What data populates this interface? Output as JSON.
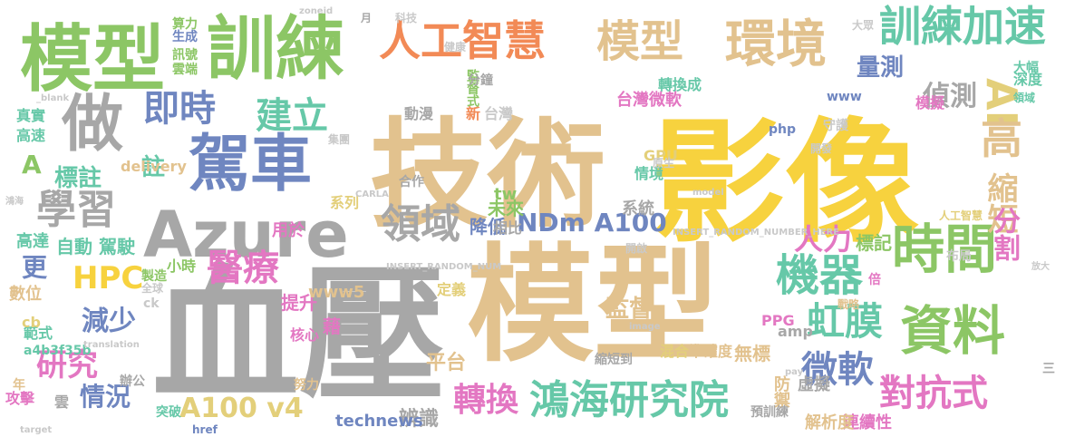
{
  "palette": {
    "tan": "#e2c28e",
    "yellow": "#f7d23e",
    "green": "#8cc665",
    "blue": "#6f86c0",
    "gray": "#a7a7a7",
    "pink": "#e377c2",
    "orange": "#f28a56",
    "teal": "#66c8a8",
    "lightyellow": "#e3cf7a",
    "lightgray": "#c9c9c9"
  },
  "words": [
    {
      "text": "技術",
      "color": "tan"
    },
    {
      "text": "影像",
      "color": "yellow"
    },
    {
      "text": "血壓",
      "color": "gray"
    },
    {
      "text": "模型",
      "color": "tan"
    },
    {
      "text": "模型",
      "color": "green"
    },
    {
      "text": "訓練",
      "color": "green"
    },
    {
      "text": "做",
      "color": "gray"
    },
    {
      "text": "駕車",
      "color": "blue"
    },
    {
      "text": "Azure",
      "color": "gray"
    },
    {
      "text": "人工智慧",
      "color": "orange"
    },
    {
      "text": "模型",
      "color": "tan"
    },
    {
      "text": "環境",
      "color": "tan"
    },
    {
      "text": "訓練加速",
      "color": "teal"
    },
    {
      "text": "時間",
      "color": "green"
    },
    {
      "text": "資料",
      "color": "green"
    },
    {
      "text": "學習",
      "color": "gray"
    },
    {
      "text": "即時",
      "color": "blue"
    },
    {
      "text": "建立",
      "color": "teal"
    },
    {
      "text": "領域",
      "color": "gray"
    },
    {
      "text": "機器",
      "color": "teal"
    },
    {
      "text": "醫療",
      "color": "pink"
    },
    {
      "text": "鴻海研究院",
      "color": "teal"
    },
    {
      "text": "轉換",
      "color": "pink"
    },
    {
      "text": "對抗式",
      "color": "pink"
    },
    {
      "text": "微軟",
      "color": "blue"
    },
    {
      "text": "虹膜",
      "color": "teal"
    },
    {
      "text": "HPC",
      "color": "yellow"
    },
    {
      "text": "NDm A100",
      "color": "blue"
    },
    {
      "text": "A100 v4",
      "color": "lightyellow"
    },
    {
      "text": "研究",
      "color": "pink"
    },
    {
      "text": "減少",
      "color": "blue"
    },
    {
      "text": "情況",
      "color": "blue"
    },
    {
      "text": "標註",
      "color": "teal"
    },
    {
      "text": "註",
      "color": "teal"
    },
    {
      "text": "A",
      "color": "green"
    },
    {
      "text": "更",
      "color": "blue"
    },
    {
      "text": "偵測",
      "color": "gray"
    },
    {
      "text": "量測",
      "color": "blue"
    },
    {
      "text": "AI",
      "color": "lightyellow"
    },
    {
      "text": "高",
      "color": "tan"
    },
    {
      "text": "縮短",
      "color": "tan"
    },
    {
      "text": "分割",
      "color": "pink"
    },
    {
      "text": "人力",
      "color": "pink"
    },
    {
      "text": "標記",
      "color": "green"
    },
    {
      "text": "自動 駕駛",
      "color": "teal"
    },
    {
      "text": "小時",
      "color": "green"
    },
    {
      "text": "提升",
      "color": "pink"
    },
    {
      "text": "監督",
      "color": "tan"
    },
    {
      "text": "無標",
      "color": "tan"
    },
    {
      "text": "準確度",
      "color": "tan"
    },
    {
      "text": "虛擬",
      "color": "gray"
    },
    {
      "text": "防禦",
      "color": "tan"
    },
    {
      "text": "辨識",
      "color": "gray"
    },
    {
      "text": "technews",
      "color": "blue"
    },
    {
      "text": "平台",
      "color": "tan"
    },
    {
      "text": "降低",
      "color": "blue"
    },
    {
      "text": "未來",
      "color": "green"
    },
    {
      "text": "tw",
      "color": "green"
    },
    {
      "text": "www5",
      "color": "tan"
    },
    {
      "text": "監督式",
      "color": "green"
    },
    {
      "text": "台灣微軟",
      "color": "pink"
    },
    {
      "text": "轉換成",
      "color": "teal"
    },
    {
      "text": "情境",
      "color": "teal"
    },
    {
      "text": "GPU",
      "color": "lightyellow"
    },
    {
      "text": "系統",
      "color": "gray"
    },
    {
      "text": "相比",
      "color": "gray"
    },
    {
      "text": "合作",
      "color": "gray"
    },
    {
      "text": "系列",
      "color": "lightyellow"
    },
    {
      "text": "用於",
      "color": "pink"
    },
    {
      "text": "delivery",
      "color": "tan"
    },
    {
      "text": "數位",
      "color": "tan"
    },
    {
      "text": "範式",
      "color": "teal"
    },
    {
      "text": "攻擊",
      "color": "pink"
    },
    {
      "text": "高速",
      "color": "teal"
    },
    {
      "text": "高達",
      "color": "teal"
    },
    {
      "text": "真實",
      "color": "teal"
    },
    {
      "text": "年",
      "color": "tan"
    },
    {
      "text": "雲",
      "color": "gray"
    },
    {
      "text": "辦公",
      "color": "gray"
    },
    {
      "text": "突破",
      "color": "teal"
    },
    {
      "text": "href",
      "color": "blue"
    },
    {
      "text": "核心",
      "color": "pink"
    },
    {
      "text": "藉",
      "color": "pink"
    },
    {
      "text": "努力",
      "color": "tan"
    },
    {
      "text": "cb",
      "color": "lightyellow"
    },
    {
      "text": "a4b3f35b",
      "color": "teal"
    },
    {
      "text": "ck",
      "color": "lightgray"
    },
    {
      "text": "php",
      "color": "blue"
    },
    {
      "text": "www",
      "color": "blue"
    },
    {
      "text": "amp",
      "color": "gray"
    },
    {
      "text": "PPG",
      "color": "pink"
    },
    {
      "text": "連續性",
      "color": "pink"
    },
    {
      "text": "解析度",
      "color": "tan"
    },
    {
      "text": "預訓練",
      "color": "gray"
    },
    {
      "text": "縮短到",
      "color": "gray"
    },
    {
      "text": "混合",
      "color": "lightyellow"
    },
    {
      "text": "動漫",
      "color": "gray"
    },
    {
      "text": "新",
      "color": "orange"
    },
    {
      "text": "台灣",
      "color": "lightgray"
    },
    {
      "text": "分鐘",
      "color": "gray"
    },
    {
      "text": "定義",
      "color": "lightyellow"
    },
    {
      "text": "模擬",
      "color": "pink"
    },
    {
      "text": "倍",
      "color": "pink"
    },
    {
      "text": "深度",
      "color": "teal"
    },
    {
      "text": "大幅",
      "color": "teal"
    },
    {
      "text": "領域",
      "color": "teal"
    },
    {
      "text": "守護",
      "color": "lightgray"
    },
    {
      "text": "布局",
      "color": "lightgray"
    },
    {
      "text": "人工智慧",
      "color": "lightyellow"
    },
    {
      "text": "戰略",
      "color": "tan"
    },
    {
      "text": "INSERT_RANDOM_NUMBER_HERE",
      "color": "lightgray"
    },
    {
      "text": "INSERT_RANDOM_NUM",
      "color": "lightgray"
    },
    {
      "text": "生成",
      "color": "blue"
    },
    {
      "text": "算力",
      "color": "green"
    },
    {
      "text": "訊號",
      "color": "green"
    },
    {
      "text": "雲端",
      "color": "green"
    },
    {
      "text": "製造",
      "color": "green"
    },
    {
      "text": "全球",
      "color": "lightgray"
    },
    {
      "text": "集團",
      "color": "lightgray"
    },
    {
      "text": "原生",
      "color": "lightgray"
    },
    {
      "text": "開啟",
      "color": "lightgray"
    },
    {
      "text": "健康",
      "color": "lightgray"
    },
    {
      "text": "科技",
      "color": "lightgray"
    },
    {
      "text": "月",
      "color": "gray"
    },
    {
      "text": "大眾",
      "color": "lightgray"
    },
    {
      "text": "image",
      "color": "lightgray"
    },
    {
      "text": "translation",
      "color": "lightgray"
    },
    {
      "text": "target",
      "color": "lightgray"
    },
    {
      "text": "_blank",
      "color": "lightgray"
    },
    {
      "text": "zoneid",
      "color": "lightgray"
    },
    {
      "text": "CARLA",
      "color": "lightgray"
    },
    {
      "text": "model",
      "color": "lightgray"
    },
    {
      "text": "pay",
      "color": "lightgray"
    },
    {
      "text": "鴻海",
      "color": "lightgray"
    },
    {
      "text": "三",
      "color": "gray"
    },
    {
      "text": "開發",
      "color": "lightgray"
    },
    {
      "text": "放大",
      "color": "lightgray"
    }
  ]
}
